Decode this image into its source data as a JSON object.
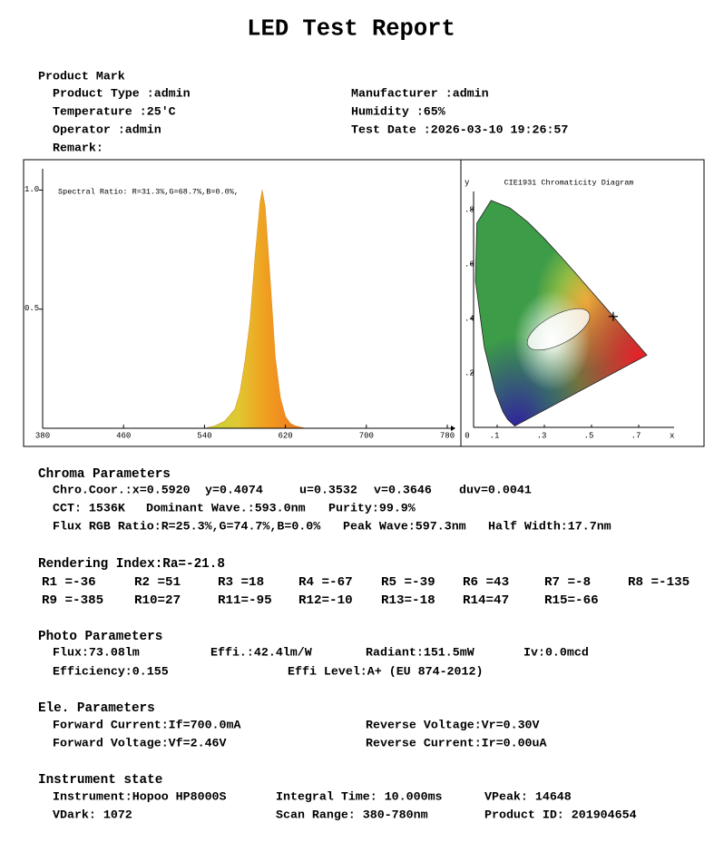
{
  "title": "LED Test Report",
  "product": {
    "heading": "Product Mark",
    "left": [
      "Product Type :admin",
      "Temperature :25'C",
      "Operator :admin",
      "Remark:"
    ],
    "right": [
      "Manufacturer :admin",
      "Humidity :65%",
      "Test Date :2026-03-10 19:26:57"
    ]
  },
  "chart_data": [
    {
      "type": "area",
      "annotation": "Spectral Ratio:  R=31.3%,G=68.7%,B=0.0%,",
      "x": [
        380,
        540,
        550,
        560,
        570,
        575,
        580,
        585,
        590,
        595,
        597,
        600,
        605,
        610,
        615,
        620,
        625,
        630,
        640,
        780
      ],
      "values": [
        0,
        0,
        0.01,
        0.03,
        0.08,
        0.15,
        0.28,
        0.45,
        0.72,
        0.95,
        1.0,
        0.93,
        0.62,
        0.3,
        0.13,
        0.05,
        0.02,
        0.01,
        0,
        0
      ],
      "xlim": [
        380,
        780
      ],
      "xticks": [
        380,
        460,
        540,
        620,
        700,
        780
      ],
      "ylim": [
        0,
        1.12
      ],
      "yticks": [
        {
          "value": 1,
          "label": "1.0"
        },
        {
          "value": 0.5,
          "label": "0.5"
        }
      ]
    },
    {
      "type": "scatter",
      "title": "CIE1931 Chromaticity Diagram",
      "x_label": "x",
      "y_label": "y",
      "x": [
        0.592
      ],
      "values": [
        0.4074
      ],
      "xlim": [
        0,
        0.85
      ],
      "xticks": [
        0,
        {
          "value": 0.1,
          "label": ".1"
        },
        {
          "value": 0.3,
          "label": ".3"
        },
        {
          "value": 0.5,
          "label": ".5"
        },
        {
          "value": 0.7,
          "label": ".7"
        }
      ],
      "ylim": [
        0,
        0.9
      ],
      "yticks": [
        {
          "value": 0.2,
          "label": ".2"
        },
        {
          "value": 0.4,
          "label": ".4"
        },
        {
          "value": 0.6,
          "label": ".6"
        },
        {
          "value": 0.8,
          "label": ".8"
        }
      ]
    }
  ],
  "chroma": {
    "heading": "Chroma Parameters",
    "rows": [
      [
        "Chro.Coor.:x=0.5920",
        "y=0.4074",
        "u=0.3532",
        "v=0.3646",
        "duv=0.0041"
      ],
      [
        "CCT: 1536K",
        "Dominant Wave.:593.0nm",
        "Purity:99.9%"
      ],
      [
        "Flux RGB Ratio:R=25.3%,G=74.7%,B=0.0%",
        "Peak Wave:597.3nm",
        "Half Width:17.7nm"
      ]
    ]
  },
  "rendering": {
    "heading": "Rendering Index:Ra=-21.8",
    "rows": [
      [
        "R1 =-36",
        "R2 =51",
        "R3 =18",
        "R4 =-67",
        "R5 =-39",
        "R6 =43",
        "R7 =-8",
        "R8 =-135"
      ],
      [
        "R9 =-385",
        "R10=27",
        "R11=-95",
        "R12=-10",
        "R13=-18",
        "R14=47",
        "R15=-66"
      ]
    ]
  },
  "photo": {
    "heading": "Photo Parameters",
    "rows": [
      [
        "Flux:73.08lm",
        "Effi.:42.4lm/W",
        "Radiant:151.5mW",
        "Iv:0.0mcd"
      ],
      [
        "Efficiency:0.155",
        "Effi Level:A+ (EU 874-2012)"
      ]
    ]
  },
  "electrical": {
    "heading": "Ele. Parameters",
    "rows": [
      [
        "Forward Current:If=700.0mA",
        "Reverse Voltage:Vr=0.30V"
      ],
      [
        "Forward Voltage:Vf=2.46V",
        "Reverse Current:Ir=0.00uA"
      ]
    ]
  },
  "instrument": {
    "heading": "Instrument state",
    "rows": [
      [
        "Instrument:Hopoo HP8000S",
        "Integral Time: 10.000ms",
        "VPeak: 14648"
      ],
      [
        "VDark: 1072",
        "Scan Range: 380-780nm",
        "Product ID: 201904654"
      ]
    ]
  }
}
